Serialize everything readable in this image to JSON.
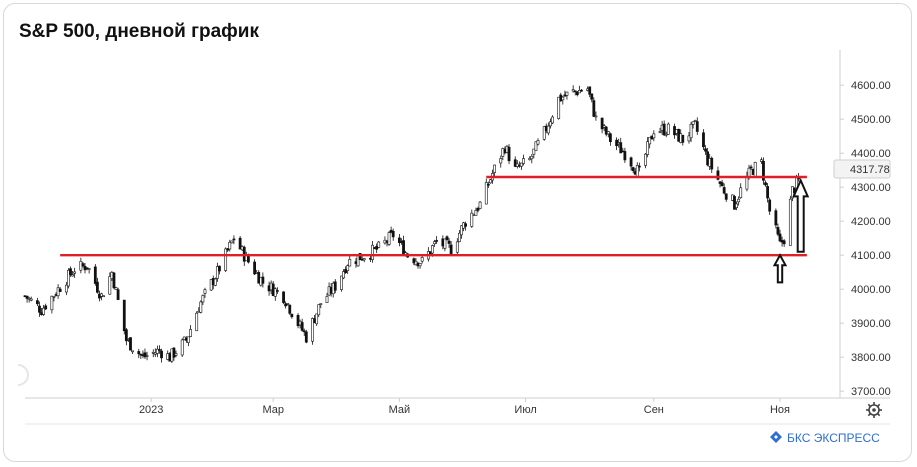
{
  "title": "S&P 500, дневной график",
  "brand": "БКС ЭКСПРЕСС",
  "icons": {
    "settings": "gear-icon",
    "brand_logo": "bks-logo-icon"
  },
  "colors": {
    "candle": "#111111",
    "support_line": "#e01e26",
    "arrow": "#111111",
    "brand": "#2f6fd1"
  },
  "chart_data": {
    "type": "candlestick",
    "y_ticks": [
      "3700.00",
      "3800.00",
      "3900.00",
      "4000.00",
      "4100.00",
      "4200.00",
      "4300.00",
      "4400.00",
      "4500.00",
      "4600.00"
    ],
    "y_ticks_values": [
      3700,
      3800,
      3900,
      4000,
      4100,
      4200,
      4300,
      4400,
      4500,
      4600
    ],
    "ylim": [
      3680,
      4680
    ],
    "x_labels": [
      "2023",
      "Мар",
      "Май",
      "Июл",
      "Сен",
      "Ноя"
    ],
    "x_labels_dates": [
      "2023-01-01",
      "2023-03-01",
      "2023-05-01",
      "2023-07-01",
      "2023-09-01",
      "2023-11-01"
    ],
    "xlim": [
      "2022-11-01",
      "2023-11-30"
    ],
    "last_price_label": "4317.78",
    "last_price": 4317.78,
    "close_path": [
      [
        "2022-11-01",
        3980
      ],
      [
        "2022-11-09",
        3940
      ],
      [
        "2022-11-17",
        4000
      ],
      [
        "2022-11-25",
        4060
      ],
      [
        "2022-12-01",
        4070
      ],
      [
        "2022-12-08",
        3980
      ],
      [
        "2022-12-13",
        4050
      ],
      [
        "2022-12-20",
        3850
      ],
      [
        "2022-12-28",
        3800
      ],
      [
        "2023-01-05",
        3820
      ],
      [
        "2023-01-10",
        3800
      ],
      [
        "2023-01-18",
        3850
      ],
      [
        "2023-01-24",
        3950
      ],
      [
        "2023-02-02",
        4050
      ],
      [
        "2023-02-10",
        4150
      ],
      [
        "2023-02-16",
        4090
      ],
      [
        "2023-02-24",
        4020
      ],
      [
        "2023-03-06",
        3980
      ],
      [
        "2023-03-13",
        3900
      ],
      [
        "2023-03-17",
        3860
      ],
      [
        "2023-03-24",
        3960
      ],
      [
        "2023-03-31",
        4010
      ],
      [
        "2023-04-06",
        4080
      ],
      [
        "2023-04-14",
        4100
      ],
      [
        "2023-04-21",
        4120
      ],
      [
        "2023-04-28",
        4160
      ],
      [
        "2023-05-05",
        4100
      ],
      [
        "2023-05-12",
        4080
      ],
      [
        "2023-05-19",
        4140
      ],
      [
        "2023-05-26",
        4120
      ],
      [
        "2023-06-02",
        4200
      ],
      [
        "2023-06-09",
        4250
      ],
      [
        "2023-06-15",
        4340
      ],
      [
        "2023-06-21",
        4420
      ],
      [
        "2023-06-26",
        4350
      ],
      [
        "2023-07-03",
        4380
      ],
      [
        "2023-07-10",
        4460
      ],
      [
        "2023-07-17",
        4560
      ],
      [
        "2023-07-24",
        4580
      ],
      [
        "2023-07-31",
        4590
      ],
      [
        "2023-08-04",
        4500
      ],
      [
        "2023-08-11",
        4440
      ],
      [
        "2023-08-18",
        4400
      ],
      [
        "2023-08-25",
        4340
      ],
      [
        "2023-09-01",
        4470
      ],
      [
        "2023-09-08",
        4470
      ],
      [
        "2023-09-15",
        4440
      ],
      [
        "2023-09-21",
        4480
      ],
      [
        "2023-09-27",
        4380
      ],
      [
        "2023-10-04",
        4300
      ],
      [
        "2023-10-10",
        4250
      ],
      [
        "2023-10-13",
        4290
      ],
      [
        "2023-10-18",
        4350
      ],
      [
        "2023-10-23",
        4370
      ],
      [
        "2023-10-27",
        4230
      ],
      [
        "2023-11-01",
        4130
      ],
      [
        "2023-11-03",
        4150
      ],
      [
        "2023-11-07",
        4290
      ],
      [
        "2023-11-10",
        4317.78
      ]
    ],
    "levels": [
      {
        "value": 4100,
        "from": "2022-11-18",
        "to": "2023-11-14"
      },
      {
        "value": 4330,
        "from": "2023-06-12",
        "to": "2023-11-14"
      }
    ],
    "arrows": [
      {
        "direction": "up",
        "date": "2023-11-01",
        "from": 4020,
        "to": 4100
      },
      {
        "direction": "up",
        "date": "2023-11-11",
        "from": 4110,
        "to": 4320
      }
    ],
    "grid": false,
    "legend": "none"
  }
}
